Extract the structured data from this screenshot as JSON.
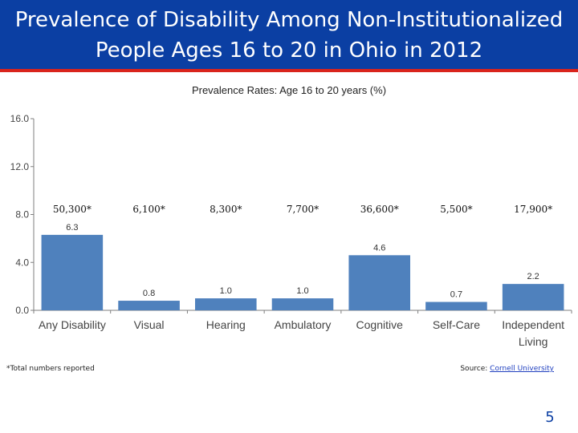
{
  "slide": {
    "title_line1": "Prevalence of Disability Among Non-Institutionalized",
    "title_line2": "People Ages 16 to 20 in Ohio in 2012",
    "footnote": "*Total numbers reported",
    "source_prefix": "Source: ",
    "source_link": "Cornell University",
    "page_number": "5",
    "colors": {
      "title_bg": "#0b3fa3",
      "accent": "#d9241c",
      "bar": "#4f81bd"
    }
  },
  "chart_data": {
    "type": "bar",
    "title": "Prevalence Rates: Age 16 to 20 years (%)",
    "categories": [
      "Any Disability",
      "Visual",
      "Hearing",
      "Ambulatory",
      "Cognitive",
      "Self-Care",
      "Independent Living"
    ],
    "category_lines": [
      [
        "Any Disability"
      ],
      [
        "Visual"
      ],
      [
        "Hearing"
      ],
      [
        "Ambulatory"
      ],
      [
        "Cognitive"
      ],
      [
        "Self-Care"
      ],
      [
        "Independent",
        "Living"
      ]
    ],
    "values": [
      6.3,
      0.8,
      1.0,
      1.0,
      4.6,
      0.7,
      2.2
    ],
    "value_labels": [
      "6.3",
      "0.8",
      "1.0",
      "1.0",
      "4.6",
      "0.7",
      "2.2"
    ],
    "totals": [
      "50,300*",
      "6,100*",
      "8,300*",
      "7,700*",
      "36,600*",
      "5,500*",
      "17,900*"
    ],
    "yticks": [
      0,
      4,
      8,
      12,
      16
    ],
    "ytick_labels": [
      "0.0",
      "4.0",
      "8.0",
      "12.0",
      "16.0"
    ],
    "ylim": [
      0,
      16
    ],
    "xlabel": "",
    "ylabel": ""
  }
}
